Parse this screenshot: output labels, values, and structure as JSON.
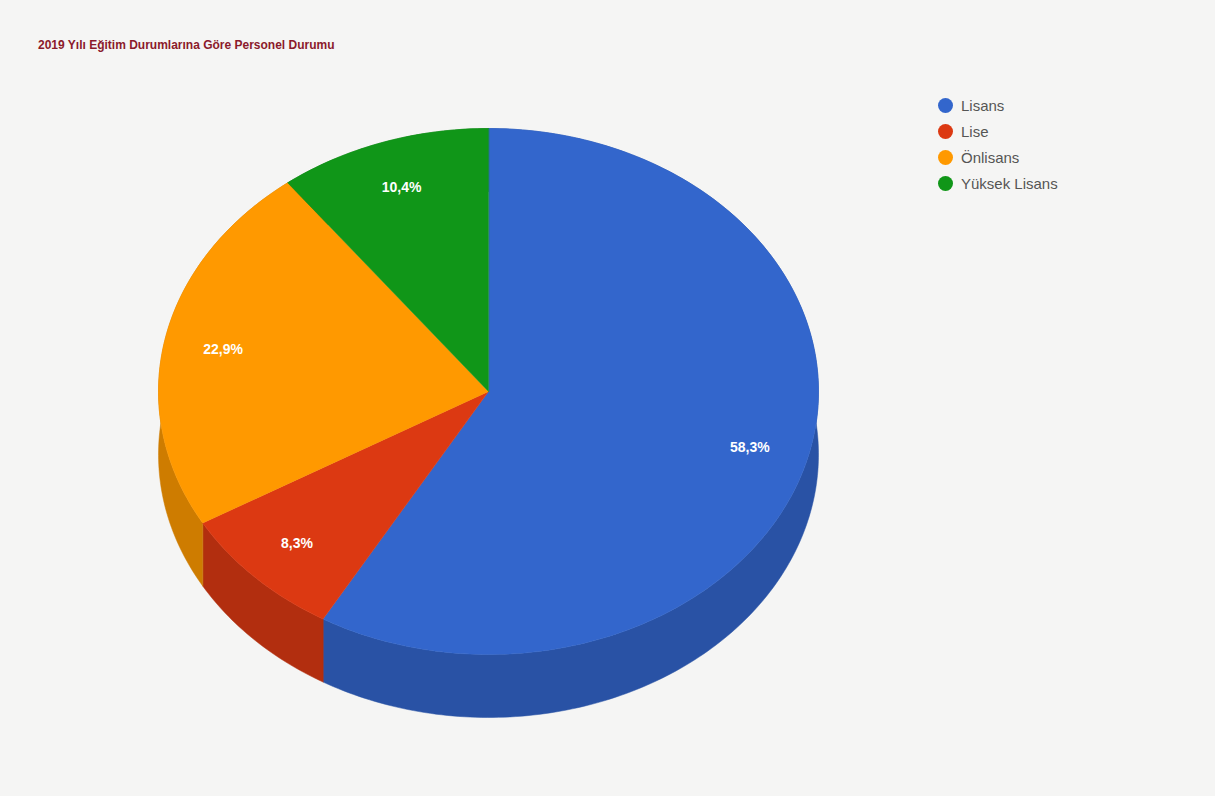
{
  "chart_data": {
    "type": "pie",
    "title": "2019 Yılı Eğitim Durumlarına Göre Personel Durumu",
    "categories": [
      "Lisans",
      "Lise",
      "Önlisans",
      "Yüksek Lisans"
    ],
    "values": [
      58.3,
      8.3,
      22.9,
      10.4
    ],
    "value_labels": [
      "58,3%",
      "8,3%",
      "22,9%",
      "10,4%"
    ],
    "colors": [
      "#3366cc",
      "#dc3912",
      "#ff9900",
      "#109618"
    ],
    "legend": "top-right",
    "data_labels": true
  }
}
